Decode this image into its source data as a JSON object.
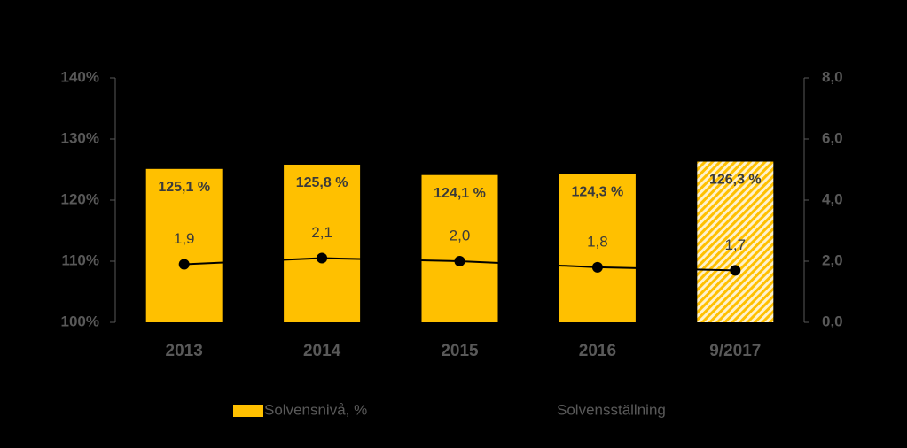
{
  "chart_data": {
    "type": "bar_line",
    "categories": [
      "2013",
      "2014",
      "2015",
      "2016",
      "9/2017"
    ],
    "series": [
      {
        "name": "Solvensnivå, %",
        "color": "#ffc000",
        "type": "bar",
        "axis": "y",
        "values": [
          125.1,
          125.8,
          124.1,
          124.3,
          126.3
        ],
        "value_labels": [
          "125,1 %",
          "125,8 %",
          "124,1 %",
          "124,3 %",
          "126,3 %"
        ],
        "bar_styles": [
          "solid",
          "solid",
          "solid",
          "solid",
          "hatched"
        ]
      },
      {
        "name": "Solvensställning",
        "color": "#000000",
        "type": "line",
        "axis": "y2",
        "values": [
          1.9,
          2.1,
          2.0,
          1.8,
          1.7
        ],
        "value_labels": [
          "1,9",
          "2,1",
          "2,0",
          "1,8",
          "1,7"
        ]
      }
    ],
    "ylim": [
      100,
      140
    ],
    "yticks": [
      {
        "value": 100,
        "label": "100%"
      },
      {
        "value": 110,
        "label": "110%"
      },
      {
        "value": 120,
        "label": "120%"
      },
      {
        "value": 130,
        "label": "130%"
      },
      {
        "value": 140,
        "label": "140%"
      }
    ],
    "y2lim": [
      0,
      8
    ],
    "y2ticks": [
      {
        "value": 0,
        "label": "0,0"
      },
      {
        "value": 2,
        "label": "2,0"
      },
      {
        "value": 4,
        "label": "4,0"
      },
      {
        "value": 6,
        "label": "6,0"
      },
      {
        "value": 8,
        "label": "8,0"
      }
    ],
    "grid": false
  }
}
